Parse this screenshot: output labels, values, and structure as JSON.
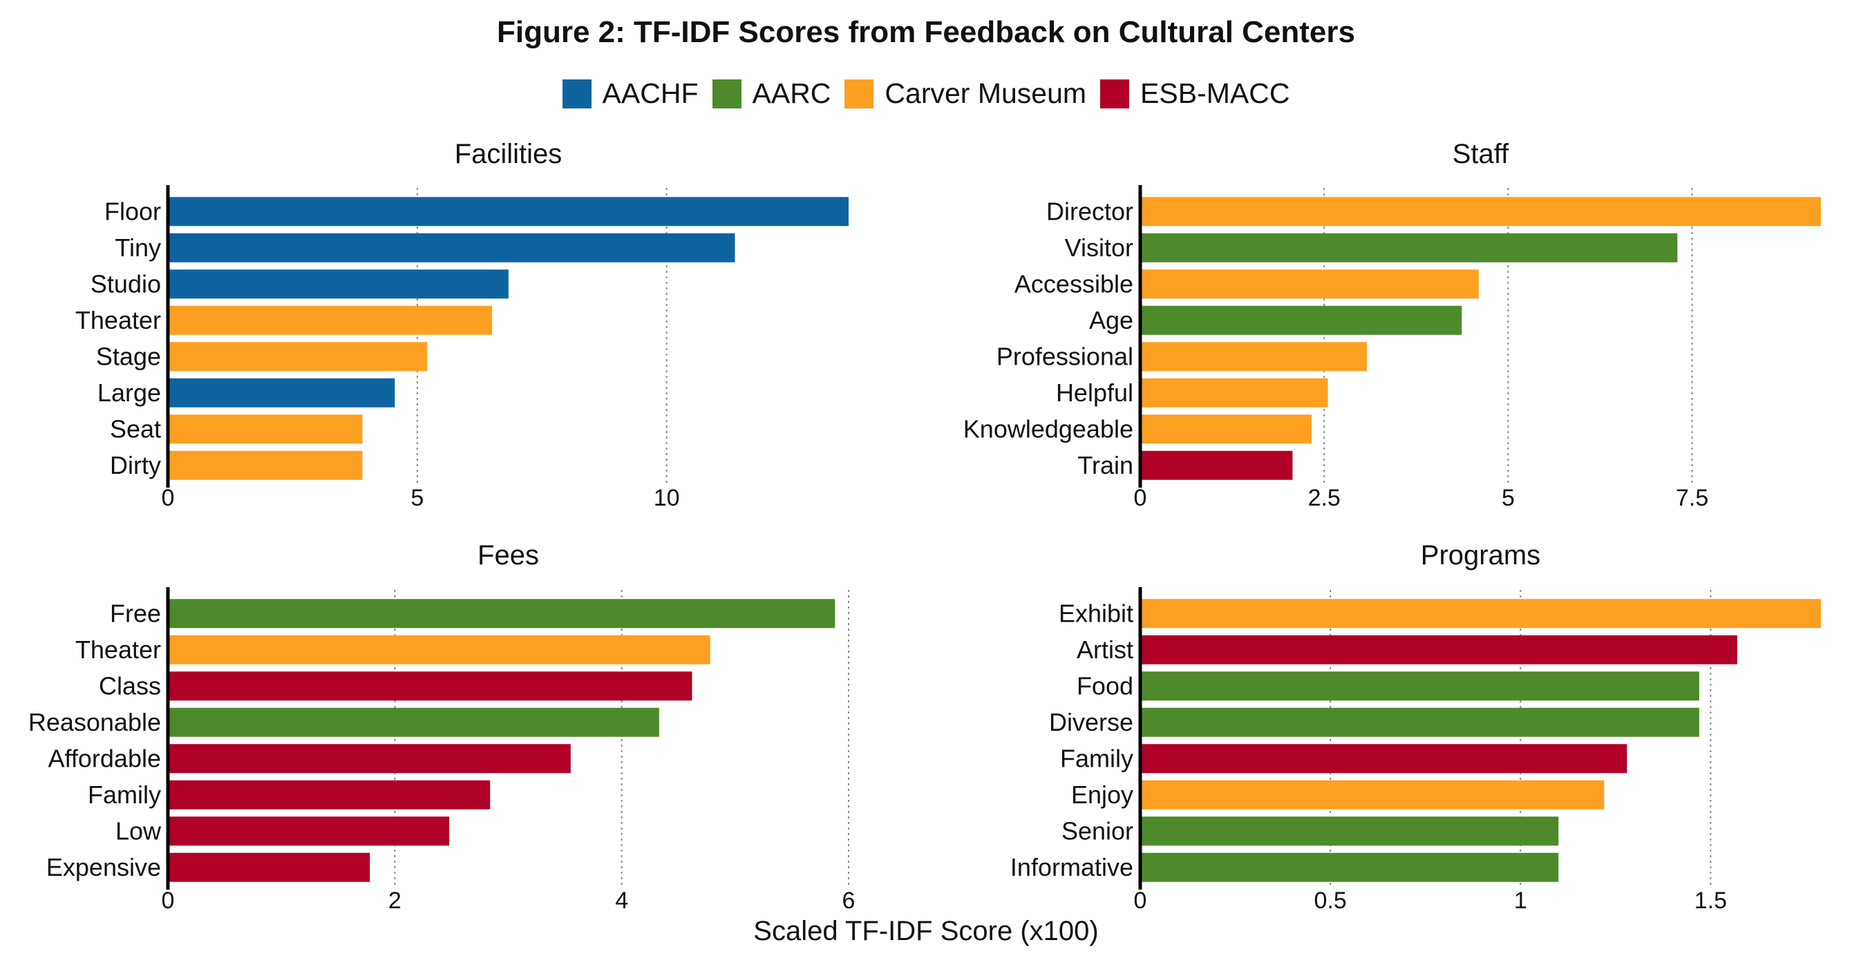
{
  "title": "Figure 2: TF-IDF Scores from Feedback on Cultural Centers",
  "legend": [
    {
      "name": "AACHF",
      "color": "#0f64a0"
    },
    {
      "name": "AARC",
      "color": "#4d8a2b"
    },
    {
      "name": "Carver Museum",
      "color": "#fda022"
    },
    {
      "name": "ESB-MACC",
      "color": "#b00028"
    }
  ],
  "xlabel": "Scaled TF-IDF Score (x100)",
  "chart_data": [
    {
      "type": "bar",
      "title": "Facilities",
      "categories": [
        "Floor",
        "Tiny",
        "Studio",
        "Theater",
        "Stage",
        "Large",
        "Seat",
        "Dirty"
      ],
      "values": [
        13.65,
        11.37,
        6.83,
        6.5,
        5.2,
        4.55,
        3.9,
        3.9
      ],
      "groups": [
        "AACHF",
        "AACHF",
        "AACHF",
        "Carver Museum",
        "Carver Museum",
        "AACHF",
        "Carver Museum",
        "Carver Museum"
      ],
      "xticks": [
        0,
        5,
        10
      ],
      "xtick_labels": [
        "0",
        "5",
        "10"
      ],
      "xlim": [
        0,
        13.65
      ],
      "grid": "vertical dotted"
    },
    {
      "type": "bar",
      "title": "Staff",
      "categories": [
        "Director",
        "Visitor",
        "Accessible",
        "Age",
        "Professional",
        "Helpful",
        "Knowledgeable",
        "Train"
      ],
      "values": [
        9.25,
        7.3,
        4.6,
        4.37,
        3.08,
        2.55,
        2.33,
        2.07
      ],
      "groups": [
        "Carver Museum",
        "AARC",
        "Carver Museum",
        "AARC",
        "Carver Museum",
        "Carver Museum",
        "Carver Museum",
        "ESB-MACC"
      ],
      "xticks": [
        0,
        2.5,
        5,
        7.5
      ],
      "xtick_labels": [
        "0",
        "2.5",
        "5",
        "7.5"
      ],
      "xlim": [
        0,
        9.25
      ],
      "grid": "vertical dotted"
    },
    {
      "type": "bar",
      "title": "Fees",
      "categories": [
        "Free",
        "Theater",
        "Class",
        "Reasonable",
        "Affordable",
        "Family",
        "Low",
        "Expensive"
      ],
      "values": [
        5.88,
        4.78,
        4.62,
        4.33,
        3.55,
        2.84,
        2.48,
        1.78
      ],
      "groups": [
        "AARC",
        "Carver Museum",
        "ESB-MACC",
        "AARC",
        "ESB-MACC",
        "ESB-MACC",
        "ESB-MACC",
        "ESB-MACC"
      ],
      "xticks": [
        0,
        2,
        4,
        6
      ],
      "xtick_labels": [
        "0",
        "2",
        "4",
        "6"
      ],
      "xlim": [
        0,
        6.0
      ],
      "grid": "vertical dotted"
    },
    {
      "type": "bar",
      "title": "Programs",
      "categories": [
        "Exhibit",
        "Artist",
        "Food",
        "Diverse",
        "Family",
        "Enjoy",
        "Senior",
        "Informative"
      ],
      "values": [
        1.79,
        1.57,
        1.47,
        1.47,
        1.28,
        1.22,
        1.1,
        1.1
      ],
      "groups": [
        "Carver Museum",
        "ESB-MACC",
        "AARC",
        "AARC",
        "ESB-MACC",
        "Carver Museum",
        "AARC",
        "AARC"
      ],
      "xticks": [
        0,
        0.5,
        1,
        1.5
      ],
      "xtick_labels": [
        "0",
        "0.5",
        "1",
        "1.5"
      ],
      "xlim": [
        0,
        1.79
      ],
      "grid": "vertical dotted"
    }
  ]
}
